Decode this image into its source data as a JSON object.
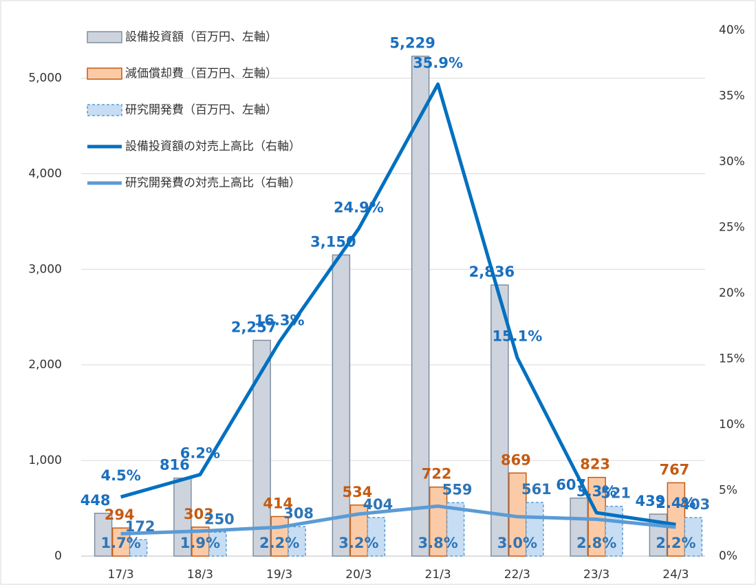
{
  "chart_data": {
    "type": "bar_line_combo",
    "categories": [
      "17/3",
      "18/3",
      "19/3",
      "20/3",
      "21/3",
      "22/3",
      "23/3",
      "24/3"
    ],
    "series": [
      {
        "name": "設備投資額（百万円、左軸）",
        "type": "bar",
        "color": "#cdd4de",
        "stroke": "#7f8ea3",
        "values": [
          448,
          816,
          2257,
          3150,
          5229,
          2836,
          607,
          439
        ],
        "value_labels": [
          "448",
          "816",
          "2,257",
          "3,150",
          "5,229",
          "2,836",
          "607",
          "439"
        ],
        "label_color": "#1a6fbf"
      },
      {
        "name": "減価償却費（百万円、左軸）",
        "type": "bar",
        "color": "#fbcba8",
        "stroke": "#c55a11",
        "values": [
          294,
          303,
          414,
          534,
          722,
          869,
          823,
          767
        ],
        "value_labels": [
          "294",
          "303",
          "414",
          "534",
          "722",
          "869",
          "823",
          "767"
        ],
        "label_color": "#c55a11"
      },
      {
        "name": "研究開発費（百万円、左軸）",
        "type": "bar",
        "color": "#c7ddf3",
        "stroke": "#5b9bd5",
        "dashed": true,
        "values": [
          172,
          250,
          308,
          404,
          559,
          561,
          521,
          403
        ],
        "value_labels": [
          "172",
          "250",
          "308",
          "404",
          "559",
          "561",
          "521",
          "403"
        ],
        "label_color": "#2e75b6"
      },
      {
        "name": "設備投資額の対売上高比（右軸）",
        "type": "line",
        "axis": "y2",
        "color": "#0070c0",
        "values": [
          4.5,
          6.2,
          16.3,
          24.9,
          35.9,
          15.1,
          3.3,
          2.4
        ],
        "value_labels": [
          "4.5%",
          "6.2%",
          "16.3%",
          "24.9%",
          "35.9%",
          "15.1%",
          "3.3%",
          "2.4%"
        ],
        "label_color": "#1a6fbf"
      },
      {
        "name": "研究開発費の対売上高比（右軸）",
        "type": "line",
        "axis": "y2",
        "color": "#5b9bd5",
        "values": [
          1.7,
          1.9,
          2.2,
          3.2,
          3.8,
          3.0,
          2.8,
          2.2
        ],
        "value_labels": [
          "1.7%",
          "1.9%",
          "2.2%",
          "3.2%",
          "3.8%",
          "3.0%",
          "2.8%",
          "2.2%"
        ],
        "label_color": "#2e75b6"
      }
    ],
    "ylim": [
      0,
      5500
    ],
    "yticks": [
      0,
      {
        "value": 1000,
        "label": "1,000"
      },
      {
        "value": 2000,
        "label": "2,000"
      },
      {
        "value": 3000,
        "label": "3,000"
      },
      {
        "value": 4000,
        "label": "4,000"
      },
      {
        "value": 5000,
        "label": "5,000"
      }
    ],
    "y2lim": [
      0,
      40
    ],
    "y2ticks": [
      {
        "value": 0,
        "label": "0%"
      },
      {
        "value": 5,
        "label": "5%"
      },
      {
        "value": 10,
        "label": "10%"
      },
      {
        "value": 15,
        "label": "15%"
      },
      {
        "value": 20,
        "label": "20%"
      },
      {
        "value": 25,
        "label": "25%"
      },
      {
        "value": 30,
        "label": "30%"
      },
      {
        "value": 35,
        "label": "35%"
      },
      {
        "value": 40,
        "label": "40%"
      }
    ],
    "grid": true,
    "legend": "top-left"
  }
}
